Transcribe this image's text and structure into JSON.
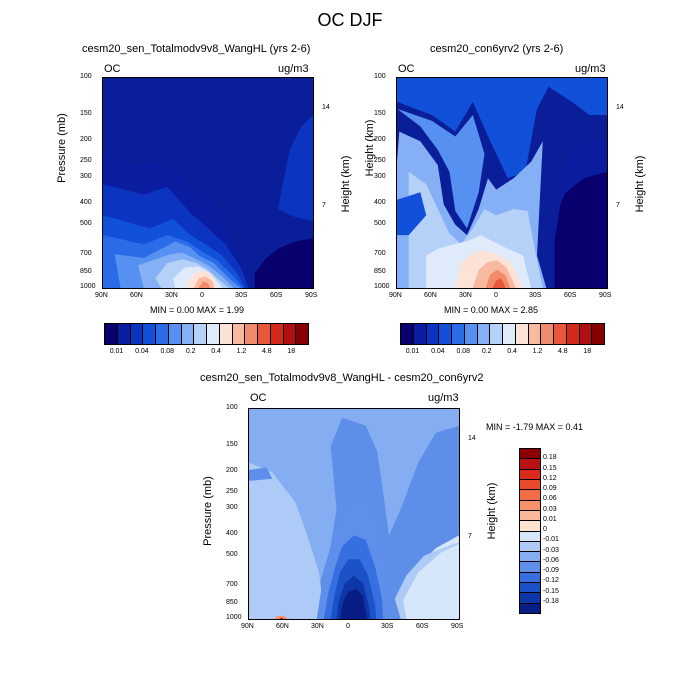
{
  "page_title": "OC DJF",
  "chart_data": [
    {
      "type": "heatmap",
      "title": "cesm20_sen_Totalmodv9v8_WangHL (yrs 2-6)",
      "variable": "OC",
      "units": "ug/m3",
      "xlabel": "",
      "ylabel": "Pressure (mb)",
      "y2label": "Height (km)",
      "x_ticks": [
        "90N",
        "60N",
        "30N",
        "0",
        "30S",
        "60S",
        "90S"
      ],
      "y_ticks": [
        "100",
        "150",
        "200",
        "250",
        "300",
        "400",
        "500",
        "700",
        "850",
        "1000"
      ],
      "y2_ticks": [
        "14",
        "7"
      ],
      "y_scale": "log",
      "stats": "MIN =   0.00   MAX =   1.99",
      "levels": [
        "0.01",
        "0.04",
        "0.08",
        "0.2",
        "0.4",
        "1.2",
        "4.8",
        "18"
      ],
      "colors": [
        "#08006f",
        "#0a1ca0",
        "#0b35c0",
        "#1150d8",
        "#2a6be8",
        "#5690f0",
        "#85b0f5",
        "#b5d1f8",
        "#dfebfb",
        "#fde3d7",
        "#f9b9a0",
        "#f28a6c",
        "#e8573a",
        "#d42a19",
        "#b01010",
        "#850000"
      ],
      "peak": {
        "lat": 2,
        "pressure": 850,
        "value": 1.99
      }
    },
    {
      "type": "heatmap",
      "title": "cesm20_con6yrv2 (yrs 2-6)",
      "variable": "OC",
      "units": "ug/m3",
      "xlabel": "",
      "ylabel": "Height (km)",
      "x_ticks": [
        "90N",
        "60N",
        "30N",
        "0",
        "30S",
        "60S",
        "90S"
      ],
      "y_ticks": [
        "100",
        "150",
        "200",
        "250",
        "300",
        "400",
        "500",
        "700",
        "850",
        "1000"
      ],
      "y2_ticks": [
        "14",
        "7"
      ],
      "y_scale": "log",
      "stats": "MIN =   0.00   MAX =   2.85",
      "levels": [
        "0.01",
        "0.04",
        "0.08",
        "0.2",
        "0.4",
        "1.2",
        "4.8",
        "18"
      ],
      "colors": [
        "#08006f",
        "#0a1ca0",
        "#0b35c0",
        "#1150d8",
        "#2a6be8",
        "#5690f0",
        "#85b0f5",
        "#b5d1f8",
        "#dfebfb",
        "#fde3d7",
        "#f9b9a0",
        "#f28a6c",
        "#e8573a",
        "#d42a19",
        "#b01010",
        "#850000"
      ],
      "peak": {
        "lat": 2,
        "pressure": 850,
        "value": 2.85
      }
    },
    {
      "type": "heatmap",
      "title": "cesm20_sen_Totalmodv9v8_WangHL - cesm20_con6yrv2",
      "variable": "OC",
      "units": "ug/m3",
      "xlabel": "",
      "ylabel": "Pressure (mb)",
      "y2label": "Height (km)",
      "x_ticks": [
        "90N",
        "60N",
        "30N",
        "0",
        "30S",
        "60S",
        "90S"
      ],
      "y_ticks": [
        "100",
        "150",
        "200",
        "250",
        "300",
        "400",
        "500",
        "700",
        "850",
        "1000"
      ],
      "y2_ticks": [
        "14",
        "7"
      ],
      "y_scale": "log",
      "stats": "MIN =  -1.79   MAX =   0.41",
      "levels": [
        "0.18",
        "0.15",
        "0.12",
        "0.09",
        "0.06",
        "0.03",
        "0.01",
        "0",
        "-0.01",
        "-0.03",
        "-0.06",
        "-0.09",
        "-0.12",
        "-0.15",
        "-0.18"
      ],
      "colors": [
        "#8b0000",
        "#b81212",
        "#d92a1c",
        "#ea4a2a",
        "#f26c44",
        "#f7916a",
        "#fab898",
        "#fde2d2",
        "#d6e6fb",
        "#aecbf7",
        "#85adf2",
        "#5d8feb",
        "#3670e0",
        "#1b52c8",
        "#0d36a8",
        "#081e86"
      ],
      "min": {
        "lat": 2,
        "pressure": 700,
        "value": -1.79
      },
      "max": {
        "lat": 63,
        "pressure": 1000,
        "value": 0.41
      }
    }
  ]
}
